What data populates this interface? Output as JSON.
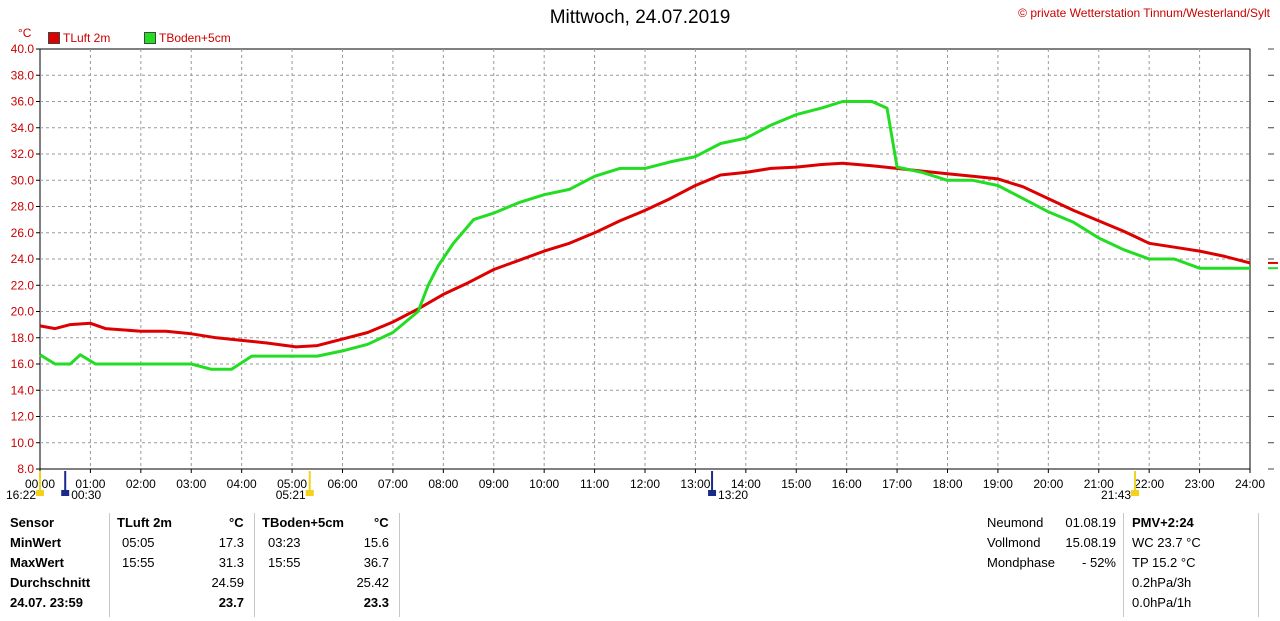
{
  "header": {
    "title": "Mittwoch, 24.07.2019",
    "copyright": "© private Wetterstation Tinnum/Westerland/Sylt",
    "unit": "°C"
  },
  "chart_data": {
    "type": "line",
    "title": "Mittwoch, 24.07.2019",
    "ylabel": "°C",
    "ylim": [
      8,
      40
    ],
    "y_ticks": [
      "8.0",
      "10.0",
      "12.0",
      "14.0",
      "16.0",
      "18.0",
      "20.0",
      "22.0",
      "24.0",
      "26.0",
      "28.0",
      "30.0",
      "32.0",
      "34.0",
      "36.0",
      "38.0",
      "40.0"
    ],
    "x_range": [
      0,
      24
    ],
    "x_ticks": [
      "00:00",
      "01:00",
      "02:00",
      "03:00",
      "04:00",
      "05:00",
      "06:00",
      "07:00",
      "08:00",
      "09:00",
      "10:00",
      "11:00",
      "12:00",
      "13:00",
      "14:00",
      "15:00",
      "16:00",
      "17:00",
      "18:00",
      "19:00",
      "20:00",
      "21:00",
      "22:00",
      "23:00",
      "24:00"
    ],
    "grid": true,
    "legend": "top-left",
    "series": [
      {
        "name": "TLuft 2m",
        "color": "#dd0000",
        "points": [
          [
            0,
            18.9
          ],
          [
            0.3,
            18.7
          ],
          [
            0.6,
            19.0
          ],
          [
            1.0,
            19.1
          ],
          [
            1.3,
            18.7
          ],
          [
            2.0,
            18.5
          ],
          [
            2.5,
            18.5
          ],
          [
            3.0,
            18.3
          ],
          [
            3.5,
            18.0
          ],
          [
            4.0,
            17.8
          ],
          [
            4.5,
            17.6
          ],
          [
            5.08,
            17.3
          ],
          [
            5.5,
            17.4
          ],
          [
            6.0,
            17.9
          ],
          [
            6.5,
            18.4
          ],
          [
            7.0,
            19.2
          ],
          [
            7.5,
            20.2
          ],
          [
            8.0,
            21.3
          ],
          [
            8.5,
            22.2
          ],
          [
            9.0,
            23.2
          ],
          [
            9.5,
            23.9
          ],
          [
            10.0,
            24.6
          ],
          [
            10.5,
            25.2
          ],
          [
            11.0,
            26.0
          ],
          [
            11.5,
            26.9
          ],
          [
            12.0,
            27.7
          ],
          [
            12.5,
            28.6
          ],
          [
            13.0,
            29.6
          ],
          [
            13.5,
            30.4
          ],
          [
            14.0,
            30.6
          ],
          [
            14.5,
            30.9
          ],
          [
            15.0,
            31.0
          ],
          [
            15.5,
            31.2
          ],
          [
            15.92,
            31.3
          ],
          [
            16.5,
            31.1
          ],
          [
            17.0,
            30.9
          ],
          [
            17.5,
            30.7
          ],
          [
            18.0,
            30.5
          ],
          [
            18.5,
            30.3
          ],
          [
            19.0,
            30.1
          ],
          [
            19.5,
            29.5
          ],
          [
            20.0,
            28.6
          ],
          [
            20.5,
            27.7
          ],
          [
            21.0,
            26.9
          ],
          [
            21.5,
            26.1
          ],
          [
            22.0,
            25.2
          ],
          [
            22.5,
            24.9
          ],
          [
            23.0,
            24.6
          ],
          [
            23.5,
            24.2
          ],
          [
            24.0,
            23.7
          ]
        ]
      },
      {
        "name": "TBoden+5cm",
        "color": "#22dd22",
        "points": [
          [
            0,
            16.7
          ],
          [
            0.3,
            16.0
          ],
          [
            0.6,
            16.0
          ],
          [
            0.8,
            16.7
          ],
          [
            1.1,
            16.0
          ],
          [
            2.0,
            16.0
          ],
          [
            2.5,
            16.0
          ],
          [
            3.0,
            16.0
          ],
          [
            3.4,
            15.6
          ],
          [
            3.8,
            15.6
          ],
          [
            4.2,
            16.6
          ],
          [
            5.0,
            16.6
          ],
          [
            5.5,
            16.6
          ],
          [
            6.0,
            17.0
          ],
          [
            6.5,
            17.5
          ],
          [
            7.0,
            18.4
          ],
          [
            7.5,
            20.0
          ],
          [
            7.7,
            22.0
          ],
          [
            7.9,
            23.5
          ],
          [
            8.2,
            25.2
          ],
          [
            8.6,
            27.0
          ],
          [
            9.0,
            27.5
          ],
          [
            9.5,
            28.3
          ],
          [
            10.0,
            28.9
          ],
          [
            10.5,
            29.3
          ],
          [
            11.0,
            30.3
          ],
          [
            11.5,
            30.9
          ],
          [
            12.0,
            30.9
          ],
          [
            12.5,
            31.4
          ],
          [
            13.0,
            31.8
          ],
          [
            13.5,
            32.8
          ],
          [
            14.0,
            33.2
          ],
          [
            14.5,
            34.2
          ],
          [
            15.0,
            35.0
          ],
          [
            15.5,
            35.5
          ],
          [
            15.92,
            36.0
          ],
          [
            16.5,
            36.0
          ],
          [
            16.8,
            35.5
          ],
          [
            17.0,
            31.0
          ],
          [
            17.5,
            30.6
          ],
          [
            18.0,
            30.0
          ],
          [
            18.5,
            30.0
          ],
          [
            19.0,
            29.6
          ],
          [
            19.5,
            28.6
          ],
          [
            20.0,
            27.6
          ],
          [
            20.5,
            26.8
          ],
          [
            21.0,
            25.6
          ],
          [
            21.5,
            24.7
          ],
          [
            22.0,
            24.0
          ],
          [
            22.5,
            24.0
          ],
          [
            23.0,
            23.3
          ],
          [
            23.5,
            23.3
          ],
          [
            24.0,
            23.3
          ]
        ]
      }
    ],
    "events": [
      {
        "label": "16:22",
        "hour": 0.0
      },
      {
        "label": "00:30",
        "hour": 0.5
      },
      {
        "label": "05:21",
        "hour": 5.35
      },
      {
        "label": "13:20",
        "hour": 13.33
      },
      {
        "label": "21:43",
        "hour": 21.72
      }
    ]
  },
  "stats": {
    "headers": {
      "sensor": "Sensor",
      "s1": "TLuft 2m",
      "s2": "TBoden+5cm",
      "unit1": "°C",
      "unit2": "°C"
    },
    "rows": [
      {
        "label": "MinWert",
        "t1": "05:05",
        "v1": "17.3",
        "t2": "03:23",
        "v2": "15.6"
      },
      {
        "label": "MaxWert",
        "t1": "15:55",
        "v1": "31.3",
        "t2": "15:55",
        "v2": "36.7"
      },
      {
        "label": "Durchschnitt",
        "t1": "",
        "v1": "24.59",
        "t2": "",
        "v2": "25.42"
      },
      {
        "label": "24.07. 23:59",
        "t1": "",
        "v1": "23.7",
        "t2": "",
        "v2": "23.3"
      }
    ]
  },
  "moon": [
    {
      "label": "Neumond",
      "value": "01.08.19"
    },
    {
      "label": "Vollmond",
      "value": "15.08.19"
    },
    {
      "label": "Mondphase",
      "value": "- 52%"
    }
  ],
  "extra": [
    "PMV+2:24",
    "WC 23.7 °C",
    "TP 15.2 °C",
    "0.2hPa/3h",
    "0.0hPa/1h"
  ]
}
